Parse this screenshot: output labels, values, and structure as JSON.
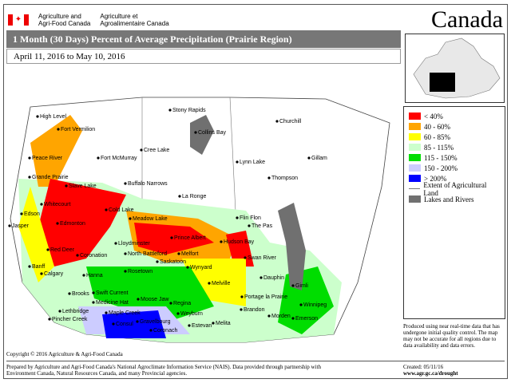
{
  "header": {
    "dept_en": [
      "Agriculture and",
      "Agri-Food Canada"
    ],
    "dept_fr": [
      "Agriculture et",
      "Agroalimentaire Canada"
    ],
    "wordmark": "Canada"
  },
  "title": "1 Month (30 Days) Percent of Average Precipitation  (Prairie Region)",
  "date_range": "April 11, 2016 to May 10, 2016",
  "legend": [
    {
      "label": "< 40%",
      "color": "#ff0000"
    },
    {
      "label": "40 - 60%",
      "color": "#ffa500"
    },
    {
      "label": "60 - 85%",
      "color": "#ffff00"
    },
    {
      "label": "85 - 115%",
      "color": "#ccffcc"
    },
    {
      "label": "115 - 150%",
      "color": "#00dd00"
    },
    {
      "label": "150 - 200%",
      "color": "#ccccff"
    },
    {
      "label": "> 200%",
      "color": "#0000ff"
    },
    {
      "label": "Extent of Agricultural Land",
      "color": "#777777",
      "line": true
    },
    {
      "label": "Lakes and Rivers",
      "color": "#707070"
    }
  ],
  "note": "Produced using near real-time data that has undergone initial quality control.  The map may not be accurate for all regions due to data availability and data errors.",
  "copyright": "Copyright © 2016 Agriculture & Agri-Food Canada",
  "prepared": [
    "Prepared by Agriculture and Agri-Food Canada's National Agroclimate Information Service (NAIS).   Data provided through partnership with",
    "Environment Canada, Natural Resources Canada, and many Provincial agencies."
  ],
  "created": "Created: 05/11/16",
  "url": "www.agr.gc.ca/drought",
  "cities": [
    "High Level",
    "Fort Vermilion",
    "Peace River",
    "Fort McMurray",
    "Grande Prairie",
    "Slave Lake",
    "Whitecourt",
    "Edson",
    "Jasper",
    "Edmonton",
    "Cold Lake",
    "Red Deer",
    "Banff",
    "Calgary",
    "Coronation",
    "Hanna",
    "Brooks",
    "Medicine Hat",
    "Lethbridge",
    "Pincher Creek",
    "Stony Rapids",
    "Collins Bay",
    "Cree Lake",
    "Buffalo Narrows",
    "La Ronge",
    "Meadow Lake",
    "Lloydminster",
    "North Battleford",
    "Prince Albert",
    "Hudson Bay",
    "Melfort",
    "Saskatoon",
    "Wynyard",
    "Rosetown",
    "Swift Current",
    "Moose Jaw",
    "Regina",
    "Maple Creek",
    "Gravelbourg",
    "Consul",
    "Coronach",
    "Weyburn",
    "Estevan",
    "Melita",
    "Melville",
    "Churchill",
    "Lynn Lake",
    "Thompson",
    "Gillam",
    "Flin Flon",
    "The Pas",
    "Swan River",
    "Dauphin",
    "Portage la Prairie",
    "Brandon",
    "Morden",
    "Winnipeg",
    "Emerson",
    "Gimli"
  ]
}
